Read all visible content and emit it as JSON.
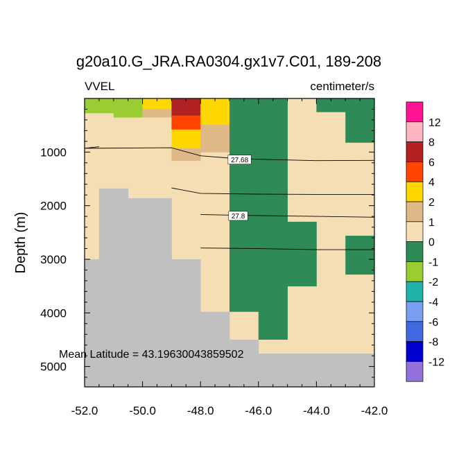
{
  "chart_data": {
    "type": "heatmap",
    "title": "g20a10.G_JRA.RA0304.gx1v7.C01, 189-208",
    "subtitle_left": "VVEL",
    "subtitle_right": "centimeter/s",
    "ylabel": "Depth (m)",
    "xlabel": "",
    "annotation": "Mean Latitude = 43.19630043859502",
    "xlim": [
      -52.0,
      -42.0
    ],
    "ylim": [
      5380,
      0
    ],
    "x_ticks": [
      -52,
      -50,
      -48,
      -46,
      -44,
      -42
    ],
    "x_tick_labels": [
      "-52.0",
      "-50.0",
      "-48.0",
      "-46.0",
      "-44.0",
      "-42.0"
    ],
    "y_ticks": [
      1000,
      2000,
      3000,
      4000,
      5000
    ],
    "y_tick_labels": [
      "1000",
      "2000",
      "3000",
      "4000",
      "5000"
    ],
    "land_color": "#c0c0c0",
    "colorbar": {
      "colors": [
        "#ff1493",
        "#ffb6c1",
        "#b22222",
        "#ff4500",
        "#ffd700",
        "#deb887",
        "#f5deb3",
        "#2e8b57",
        "#9acd32",
        "#20b2aa",
        "#7b9ff0",
        "#4169e1",
        "#0000cd",
        "#9370db"
      ],
      "labels": [
        "12",
        "8",
        "6",
        "4",
        "2",
        "1",
        "0",
        "-1",
        "-2",
        "-4",
        "-6",
        "-8",
        "-12"
      ]
    },
    "cells": [
      {
        "x0": -52.0,
        "x1": -51.0,
        "d0": 0,
        "d1": 270,
        "value": -1.5
      },
      {
        "x0": -51.0,
        "x1": -50.0,
        "d0": 0,
        "d1": 350,
        "value": -1.5
      },
      {
        "x0": -50.0,
        "x1": -49.0,
        "d0": 0,
        "d1": 200,
        "value": 3
      },
      {
        "x0": -50.0,
        "x1": -49.0,
        "d0": 200,
        "d1": 350,
        "value": 1.5
      },
      {
        "x0": -49.0,
        "x1": -48.0,
        "d0": 0,
        "d1": 320,
        "value": 7
      },
      {
        "x0": -49.0,
        "x1": -48.0,
        "d0": 320,
        "d1": 580,
        "value": 5
      },
      {
        "x0": -49.0,
        "x1": -48.0,
        "d0": 580,
        "d1": 930,
        "value": 3
      },
      {
        "x0": -49.0,
        "x1": -48.0,
        "d0": 930,
        "d1": 1160,
        "value": 1.5
      },
      {
        "x0": -48.0,
        "x1": -47.0,
        "d0": 0,
        "d1": 490,
        "value": 3
      },
      {
        "x0": -48.0,
        "x1": -47.0,
        "d0": 490,
        "d1": 1000,
        "value": 1.5
      },
      {
        "x0": -47.0,
        "x1": -46.0,
        "d0": 0,
        "d1": 3980,
        "value": -0.5
      },
      {
        "x0": -47.0,
        "x1": -46.0,
        "d0": 3980,
        "d1": 4500,
        "value": 0.5
      },
      {
        "x0": -46.0,
        "x1": -45.0,
        "d0": 0,
        "d1": 4500,
        "value": -0.5
      },
      {
        "x0": -46.0,
        "x1": -45.0,
        "d0": 4500,
        "d1": 4760,
        "value": 0.5
      },
      {
        "x0": -45.0,
        "x1": -44.0,
        "d0": 2300,
        "d1": 3500,
        "value": -0.5
      },
      {
        "x0": -44.0,
        "x1": -43.0,
        "d0": 0,
        "d1": 250,
        "value": -0.5
      },
      {
        "x0": -43.0,
        "x1": -42.0,
        "d0": 0,
        "d1": 820,
        "value": -0.5
      },
      {
        "x0": -43.0,
        "x1": -42.0,
        "d0": 2560,
        "d1": 3280,
        "value": -0.5
      }
    ],
    "land": [
      {
        "x0": -51.5,
        "x1": -50.5,
        "d0": 1680,
        "d1": 5380
      },
      {
        "x0": -50.5,
        "x1": -49.0,
        "d0": 1860,
        "d1": 5380
      },
      {
        "x0": -52.0,
        "x1": -51.5,
        "d0": 3000,
        "d1": 5380
      },
      {
        "x0": -49.0,
        "x1": -48.0,
        "d0": 3000,
        "d1": 5380
      },
      {
        "x0": -48.0,
        "x1": -47.0,
        "d0": 3980,
        "d1": 5380
      },
      {
        "x0": -47.0,
        "x1": -46.0,
        "d0": 4500,
        "d1": 5380
      },
      {
        "x0": -46.0,
        "x1": -42.0,
        "d0": 4760,
        "d1": 5380
      }
    ],
    "contours": [
      {
        "label": "27.68",
        "label_at": [
          -46.65,
          1140
        ],
        "points": [
          [
            -51.5,
            900
          ],
          [
            -52.0,
            930
          ],
          [
            -49.0,
            920
          ],
          [
            -48.0,
            1070
          ],
          [
            -46.7,
            1125
          ],
          [
            -44.0,
            1160
          ],
          [
            -42.0,
            1155
          ]
        ]
      },
      {
        "label": "",
        "label_at": null,
        "points": [
          [
            -49.0,
            1670
          ],
          [
            -48.0,
            1770
          ],
          [
            -46.0,
            1785
          ],
          [
            -44.0,
            1790
          ],
          [
            -42.0,
            1790
          ]
        ]
      },
      {
        "label": "27.8",
        "label_at": [
          -46.7,
          2190
        ],
        "points": [
          [
            -48.0,
            2165
          ],
          [
            -46.7,
            2180
          ],
          [
            -44.0,
            2200
          ],
          [
            -42.0,
            2215
          ]
        ]
      },
      {
        "label": "",
        "label_at": null,
        "points": [
          [
            -48.0,
            2790
          ],
          [
            -46.0,
            2800
          ],
          [
            -44.0,
            2820
          ],
          [
            -42.0,
            2820
          ]
        ]
      }
    ]
  }
}
